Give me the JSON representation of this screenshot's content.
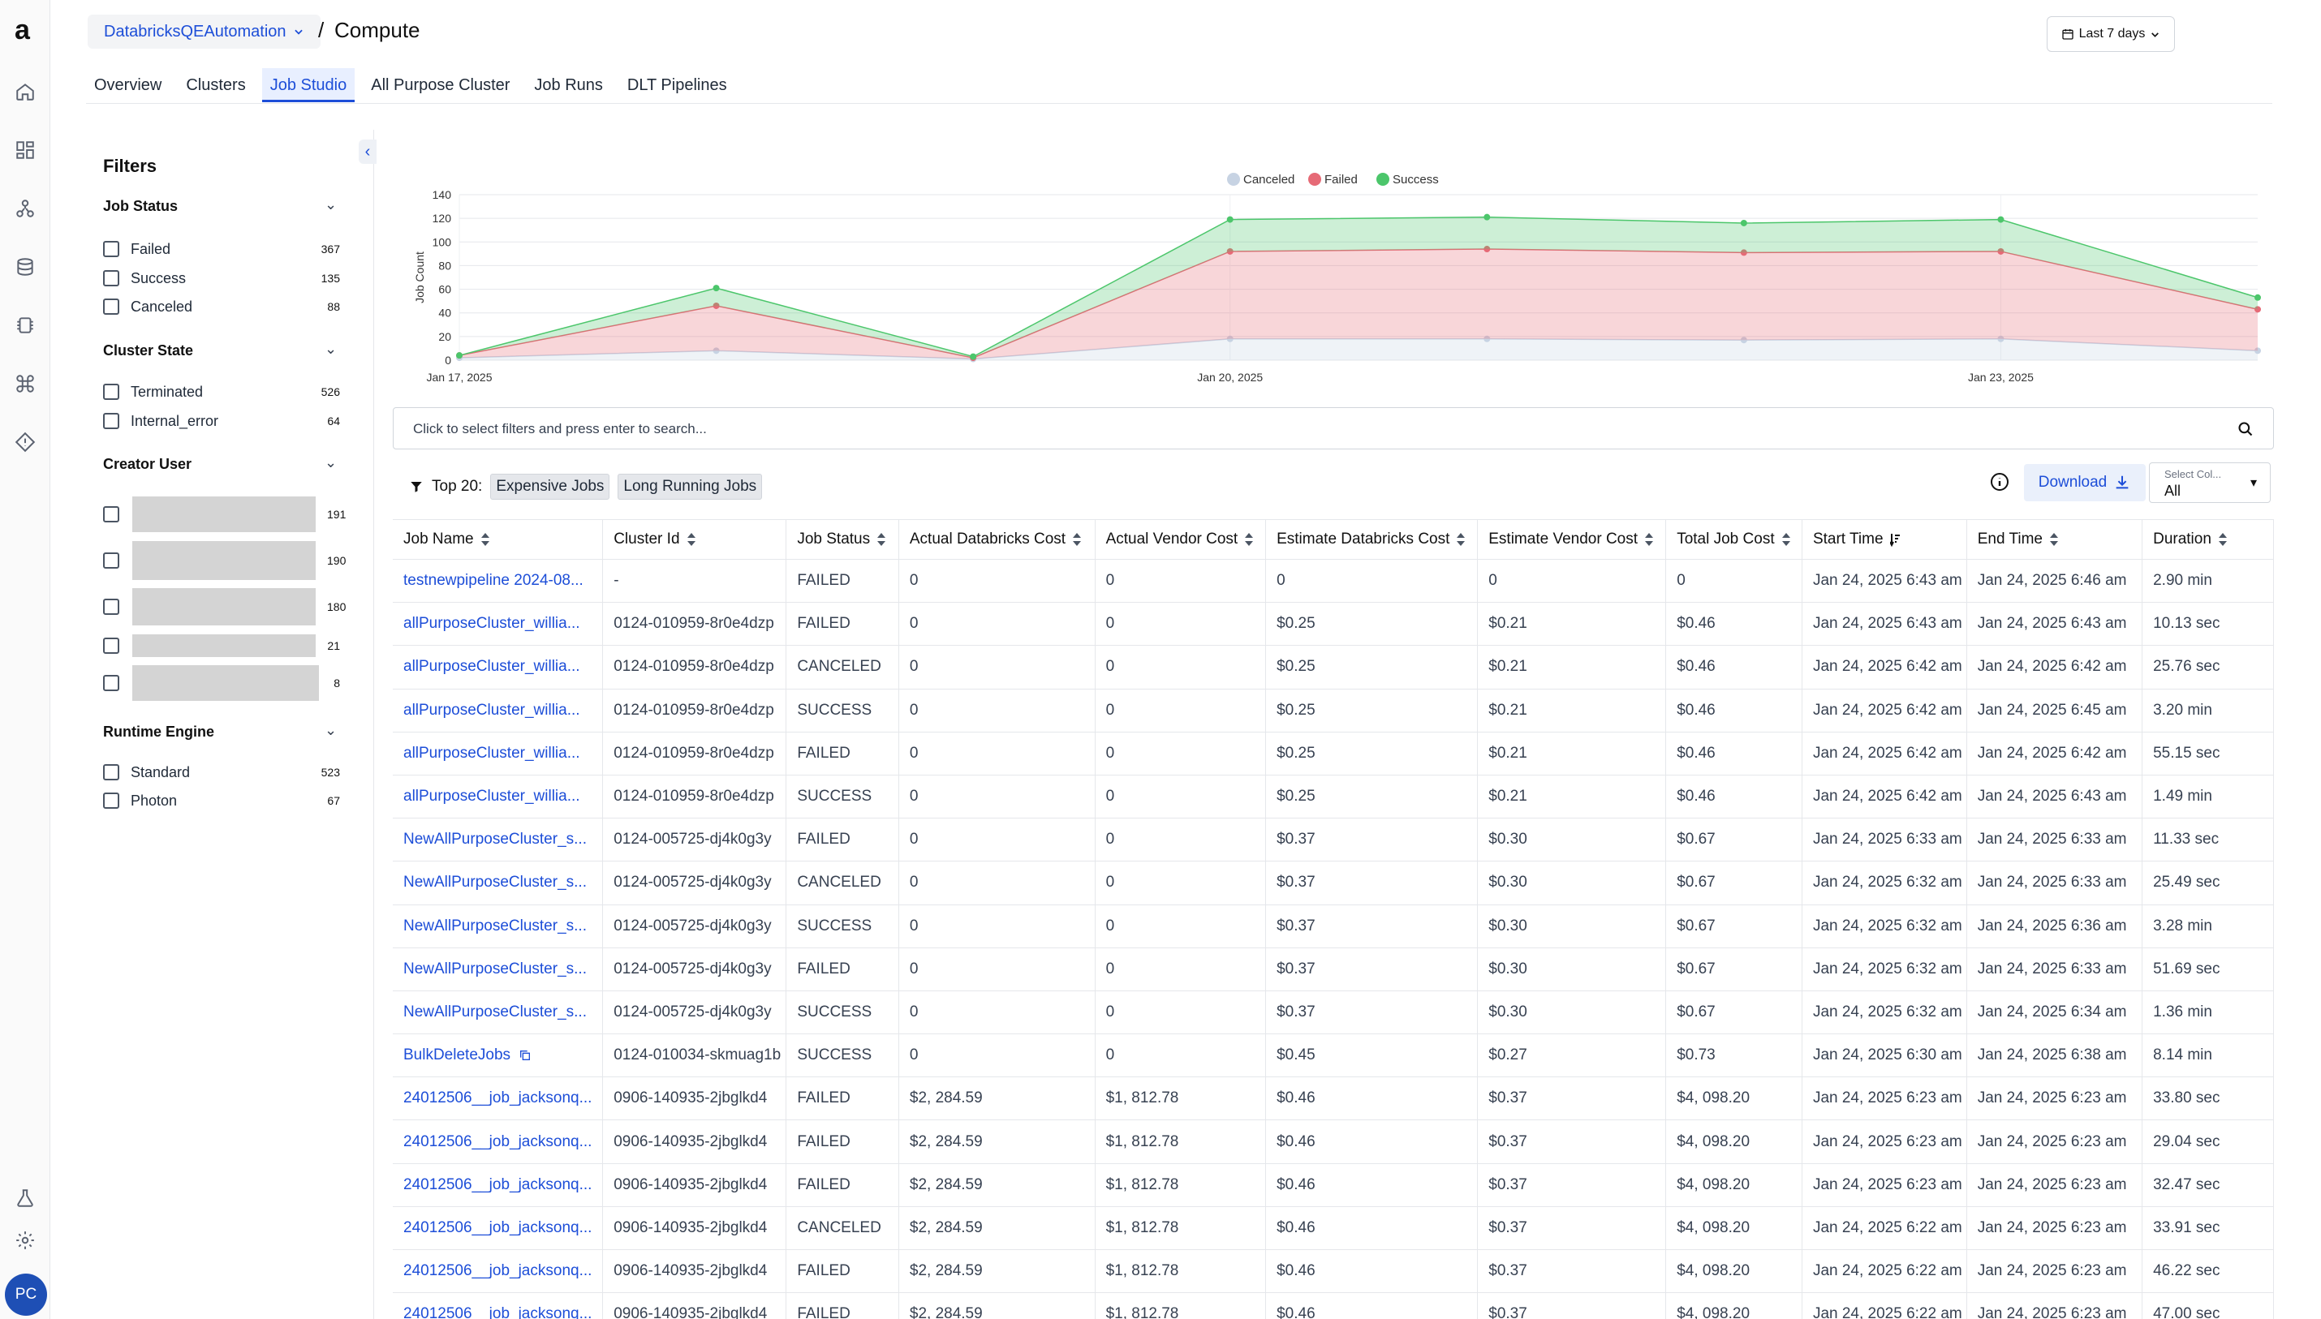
{
  "app": {
    "logo": "a",
    "avatar_initials": "PC"
  },
  "header": {
    "workspace": "DatabricksQEAutomation",
    "separator": "/",
    "title": "Compute",
    "date_range": "Last 7 days"
  },
  "tabs": [
    {
      "label": "Overview"
    },
    {
      "label": "Clusters"
    },
    {
      "label": "Job Studio",
      "active": true
    },
    {
      "label": "All Purpose Cluster"
    },
    {
      "label": "Job Runs"
    },
    {
      "label": "DLT Pipelines"
    }
  ],
  "filters": {
    "title": "Filters",
    "job_status": {
      "title": "Job Status",
      "items": [
        {
          "label": "Failed",
          "count": "367"
        },
        {
          "label": "Success",
          "count": "135"
        },
        {
          "label": "Canceled",
          "count": "88"
        }
      ]
    },
    "cluster_state": {
      "title": "Cluster State",
      "items": [
        {
          "label": "Terminated",
          "count": "526"
        },
        {
          "label": "Internal_error",
          "count": "64"
        }
      ]
    },
    "creator_user": {
      "title": "Creator User",
      "items": [
        {
          "count": "191"
        },
        {
          "count": "190"
        },
        {
          "count": "180"
        },
        {
          "count": "21"
        },
        {
          "count": "8"
        }
      ]
    },
    "runtime_engine": {
      "title": "Runtime Engine",
      "items": [
        {
          "label": "Standard",
          "count": "523"
        },
        {
          "label": "Photon",
          "count": "67"
        }
      ]
    }
  },
  "chart_data": {
    "type": "area",
    "stacked": true,
    "ylabel": "Job Count",
    "ylim": [
      0,
      140
    ],
    "yticks": [
      0,
      20,
      40,
      60,
      80,
      100,
      120,
      140
    ],
    "x": [
      "Jan 17, 2025",
      "Jan 18, 2025",
      "Jan 19, 2025",
      "Jan 20, 2025",
      "Jan 21, 2025",
      "Jan 22, 2025",
      "Jan 23, 2025",
      "Jan 24, 2025"
    ],
    "xtick_labels": [
      "Jan 17, 2025",
      "Jan 20, 2025",
      "Jan 23, 2025"
    ],
    "legend_position": "top",
    "grid": true,
    "series": [
      {
        "name": "Canceled",
        "color": "#c7d3e3",
        "values": [
          2,
          8,
          1,
          18,
          18,
          17,
          18,
          8
        ]
      },
      {
        "name": "Failed",
        "color": "#e66a76",
        "values": [
          2,
          38,
          1,
          74,
          76,
          74,
          74,
          35
        ]
      },
      {
        "name": "Success",
        "color": "#4cc66b",
        "values": [
          0,
          15,
          1,
          27,
          27,
          25,
          27,
          10
        ]
      }
    ]
  },
  "search": {
    "placeholder": "Click to select filters and press enter to search..."
  },
  "toolbar": {
    "top_label": "Top 20:",
    "chip_expensive": "Expensive Jobs",
    "chip_long": "Long Running Jobs",
    "download": "Download",
    "select_label": "Select Col...",
    "select_value": "All"
  },
  "table": {
    "columns": [
      "Job Name",
      "Cluster Id",
      "Job Status",
      "Actual Databricks Cost",
      "Actual Vendor Cost",
      "Estimate Databricks Cost",
      "Estimate Vendor Cost",
      "Total Job Cost",
      "Start Time",
      "End Time",
      "Duration"
    ],
    "rows": [
      [
        "testnewpipeline 2024-08...",
        "-",
        "FAILED",
        "0",
        "0",
        "0",
        "0",
        "0",
        "Jan 24, 2025 6:43 am",
        "Jan 24, 2025 6:46 am",
        "2.90 min"
      ],
      [
        "allPurposeCluster_willia...",
        "0124-010959-8r0e4dzp",
        "FAILED",
        "0",
        "0",
        "$0.25",
        "$0.21",
        "$0.46",
        "Jan 24, 2025 6:43 am",
        "Jan 24, 2025 6:43 am",
        "10.13 sec"
      ],
      [
        "allPurposeCluster_willia...",
        "0124-010959-8r0e4dzp",
        "CANCELED",
        "0",
        "0",
        "$0.25",
        "$0.21",
        "$0.46",
        "Jan 24, 2025 6:42 am",
        "Jan 24, 2025 6:42 am",
        "25.76 sec"
      ],
      [
        "allPurposeCluster_willia...",
        "0124-010959-8r0e4dzp",
        "SUCCESS",
        "0",
        "0",
        "$0.25",
        "$0.21",
        "$0.46",
        "Jan 24, 2025 6:42 am",
        "Jan 24, 2025 6:45 am",
        "3.20 min"
      ],
      [
        "allPurposeCluster_willia...",
        "0124-010959-8r0e4dzp",
        "FAILED",
        "0",
        "0",
        "$0.25",
        "$0.21",
        "$0.46",
        "Jan 24, 2025 6:42 am",
        "Jan 24, 2025 6:42 am",
        "55.15 sec"
      ],
      [
        "allPurposeCluster_willia...",
        "0124-010959-8r0e4dzp",
        "SUCCESS",
        "0",
        "0",
        "$0.25",
        "$0.21",
        "$0.46",
        "Jan 24, 2025 6:42 am",
        "Jan 24, 2025 6:43 am",
        "1.49 min"
      ],
      [
        "NewAllPurposeCluster_s...",
        "0124-005725-dj4k0g3y",
        "FAILED",
        "0",
        "0",
        "$0.37",
        "$0.30",
        "$0.67",
        "Jan 24, 2025 6:33 am",
        "Jan 24, 2025 6:33 am",
        "11.33 sec"
      ],
      [
        "NewAllPurposeCluster_s...",
        "0124-005725-dj4k0g3y",
        "CANCELED",
        "0",
        "0",
        "$0.37",
        "$0.30",
        "$0.67",
        "Jan 24, 2025 6:32 am",
        "Jan 24, 2025 6:33 am",
        "25.49 sec"
      ],
      [
        "NewAllPurposeCluster_s...",
        "0124-005725-dj4k0g3y",
        "SUCCESS",
        "0",
        "0",
        "$0.37",
        "$0.30",
        "$0.67",
        "Jan 24, 2025 6:32 am",
        "Jan 24, 2025 6:36 am",
        "3.28 min"
      ],
      [
        "NewAllPurposeCluster_s...",
        "0124-005725-dj4k0g3y",
        "FAILED",
        "0",
        "0",
        "$0.37",
        "$0.30",
        "$0.67",
        "Jan 24, 2025 6:32 am",
        "Jan 24, 2025 6:33 am",
        "51.69 sec"
      ],
      [
        "NewAllPurposeCluster_s...",
        "0124-005725-dj4k0g3y",
        "SUCCESS",
        "0",
        "0",
        "$0.37",
        "$0.30",
        "$0.67",
        "Jan 24, 2025 6:32 am",
        "Jan 24, 2025 6:34 am",
        "1.36 min"
      ],
      [
        "BulkDeleteJobs",
        "0124-010034-skmuag1b",
        "SUCCESS",
        "0",
        "0",
        "$0.45",
        "$0.27",
        "$0.73",
        "Jan 24, 2025 6:30 am",
        "Jan 24, 2025 6:38 am",
        "8.14 min"
      ],
      [
        "24012506__job_jacksonq...",
        "0906-140935-2jbglkd4",
        "FAILED",
        "$2, 284.59",
        "$1, 812.78",
        "$0.46",
        "$0.37",
        "$4, 098.20",
        "Jan 24, 2025 6:23 am",
        "Jan 24, 2025 6:23 am",
        "33.80 sec"
      ],
      [
        "24012506__job_jacksonq...",
        "0906-140935-2jbglkd4",
        "FAILED",
        "$2, 284.59",
        "$1, 812.78",
        "$0.46",
        "$0.37",
        "$4, 098.20",
        "Jan 24, 2025 6:23 am",
        "Jan 24, 2025 6:23 am",
        "29.04 sec"
      ],
      [
        "24012506__job_jacksonq...",
        "0906-140935-2jbglkd4",
        "FAILED",
        "$2, 284.59",
        "$1, 812.78",
        "$0.46",
        "$0.37",
        "$4, 098.20",
        "Jan 24, 2025 6:23 am",
        "Jan 24, 2025 6:23 am",
        "32.47 sec"
      ],
      [
        "24012506__job_jacksonq...",
        "0906-140935-2jbglkd4",
        "CANCELED",
        "$2, 284.59",
        "$1, 812.78",
        "$0.46",
        "$0.37",
        "$4, 098.20",
        "Jan 24, 2025 6:22 am",
        "Jan 24, 2025 6:23 am",
        "33.91 sec"
      ],
      [
        "24012506__job_jacksonq...",
        "0906-140935-2jbglkd4",
        "FAILED",
        "$2, 284.59",
        "$1, 812.78",
        "$0.46",
        "$0.37",
        "$4, 098.20",
        "Jan 24, 2025 6:22 am",
        "Jan 24, 2025 6:23 am",
        "46.22 sec"
      ],
      [
        "24012506__job_jacksonq...",
        "0906-140935-2jbglkd4",
        "FAILED",
        "$2, 284.59",
        "$1, 812.78",
        "$0.46",
        "$0.37",
        "$4, 098.20",
        "Jan 24, 2025 6:22 am",
        "Jan 24, 2025 6:23 am",
        "47.00 sec"
      ]
    ]
  }
}
